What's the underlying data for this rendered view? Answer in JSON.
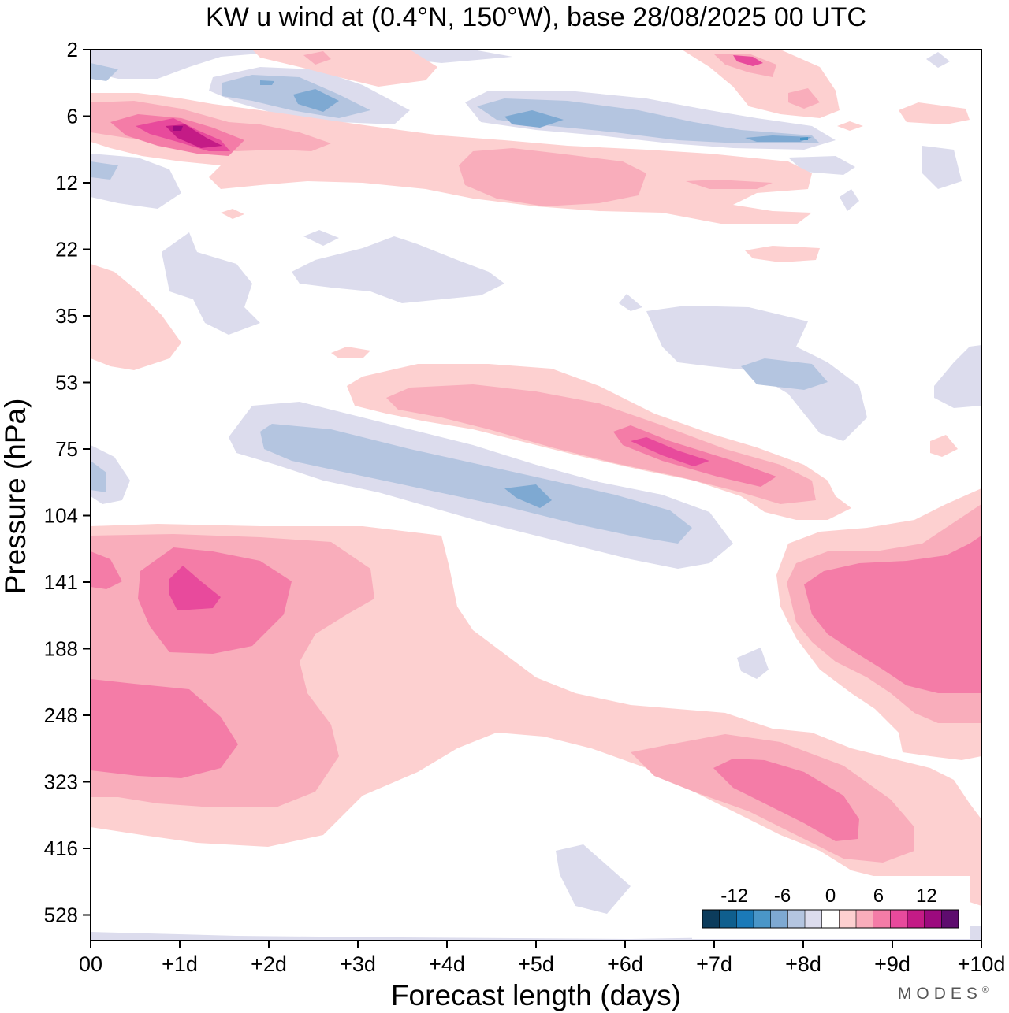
{
  "chart_data": {
    "type": "heatmap",
    "subtype": "filled-contour",
    "title": "KW u wind at (0.4°N, 150°W),  base 28/08/2025  00 UTC",
    "xlabel": "Forecast length (days)",
    "ylabel": "Pressure (hPa)",
    "x_ticks": [
      "00",
      "+1d",
      "+2d",
      "+3d",
      "+4d",
      "+5d",
      "+6d",
      "+7d",
      "+8d",
      "+9d",
      "+10d"
    ],
    "y_ticks": [
      "2",
      "6",
      "12",
      "22",
      "35",
      "53",
      "75",
      "104",
      "141",
      "188",
      "248",
      "323",
      "416",
      "528"
    ],
    "xlim": [
      0,
      10
    ],
    "x_units": "days",
    "colorbar": {
      "labels": [
        "-12",
        "-6",
        "0",
        "6",
        "12"
      ],
      "levels": [
        -16,
        -14,
        -12,
        -10,
        -8,
        -6,
        -4,
        -2,
        0,
        2,
        4,
        6,
        8,
        10,
        12,
        14,
        16
      ],
      "colors": [
        "#0c3c5c",
        "#0f5f8e",
        "#1b7ab8",
        "#4a96c8",
        "#7ea9d2",
        "#b4c5e0",
        "#dcdced",
        "#ffffff",
        "#fdd0d0",
        "#f9adbb",
        "#f47ca7",
        "#e84a9c",
        "#c41b86",
        "#9c0a7e",
        "#5e0c6e"
      ]
    },
    "features": [
      {
        "name": "upper-level negative band",
        "x": [
          0.5,
          2.5
        ],
        "p": [
          3,
          5
        ],
        "v": -6
      },
      {
        "name": "upper negative streak",
        "x": [
          4.3,
          8.4
        ],
        "p": [
          5,
          8
        ],
        "v": -8
      },
      {
        "name": "upper positive jet",
        "x": [
          0,
          2
        ],
        "p": [
          6,
          8
        ],
        "v": 12
      },
      {
        "name": "positive streak 12 hPa",
        "x": [
          4.2,
          6.2
        ],
        "p": [
          10,
          14
        ],
        "v": 6
      },
      {
        "name": "negative tilted band",
        "x": [
          2,
          7
        ],
        "p": [
          60,
          110
        ],
        "v": -8
      },
      {
        "name": "positive tilted band",
        "x": [
          3,
          8
        ],
        "p": [
          50,
          90
        ],
        "v": 8
      },
      {
        "name": "low-level positive max",
        "x": [
          0.6,
          2.2
        ],
        "p": [
          120,
          180
        ],
        "v": 12
      },
      {
        "name": "lower positive max",
        "x": [
          0,
          1.8
        ],
        "p": [
          210,
          330
        ],
        "v": 10
      },
      {
        "name": "positive max 323 hPa",
        "x": [
          6.9,
          8.6
        ],
        "p": [
          290,
          380
        ],
        "v": 10
      },
      {
        "name": "positive region right",
        "x": [
          8,
          10
        ],
        "p": [
          110,
          260
        ],
        "v": 10
      }
    ]
  },
  "branding": {
    "text": "MODES",
    "mark": "®"
  }
}
